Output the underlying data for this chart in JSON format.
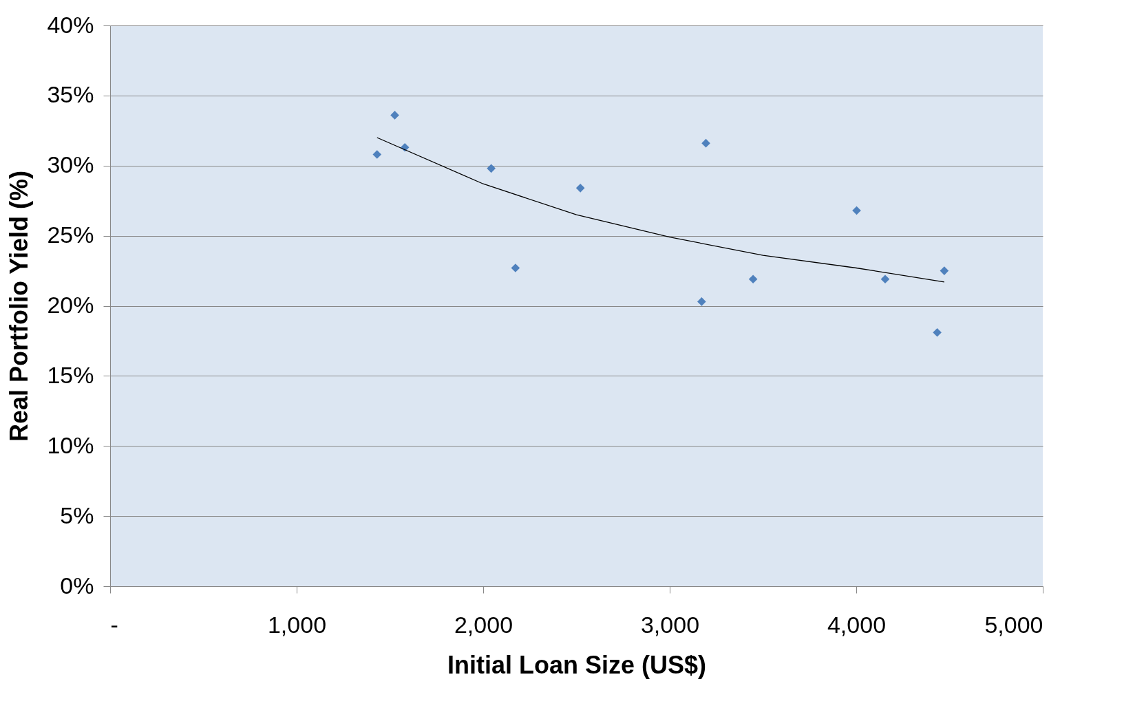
{
  "chart_data": {
    "type": "scatter",
    "xlabel": "Initial Loan Size (US$)",
    "ylabel": "Real Portfolio Yield (%)",
    "xlim": [
      0,
      5000
    ],
    "ylim": [
      0,
      40
    ],
    "xticks": [
      {
        "value": 0,
        "label": "-"
      },
      {
        "value": 1000,
        "label": "1,000"
      },
      {
        "value": 2000,
        "label": "2,000"
      },
      {
        "value": 3000,
        "label": "3,000"
      },
      {
        "value": 4000,
        "label": "4,000"
      },
      {
        "value": 5000,
        "label": "5,000"
      }
    ],
    "yticks": [
      {
        "value": 0,
        "label": "0%"
      },
      {
        "value": 5,
        "label": "5%"
      },
      {
        "value": 10,
        "label": "10%"
      },
      {
        "value": 15,
        "label": "15%"
      },
      {
        "value": 20,
        "label": "20%"
      },
      {
        "value": 25,
        "label": "25%"
      },
      {
        "value": 30,
        "label": "30%"
      },
      {
        "value": 35,
        "label": "35%"
      },
      {
        "value": 40,
        "label": "40%"
      }
    ],
    "grid": "y",
    "marker": "diamond",
    "series": [
      {
        "color": "#4f81bd",
        "x": [
          1431,
          1526,
          1580,
          2043,
          2173,
          2521,
          3171,
          3194,
          3447,
          4002,
          4155,
          4434,
          4472
        ],
        "values": [
          30.8,
          33.6,
          31.3,
          29.8,
          22.7,
          28.4,
          20.3,
          31.6,
          21.9,
          26.8,
          21.9,
          18.1,
          22.5
        ]
      },
      {
        "type": "line",
        "color": "#000000",
        "marker": "none",
        "x": [
          1431,
          2000,
          2500,
          3000,
          3500,
          4000,
          4472
        ],
        "values": [
          32.0,
          28.7,
          26.5,
          24.9,
          23.6,
          22.7,
          21.7
        ]
      }
    ]
  }
}
